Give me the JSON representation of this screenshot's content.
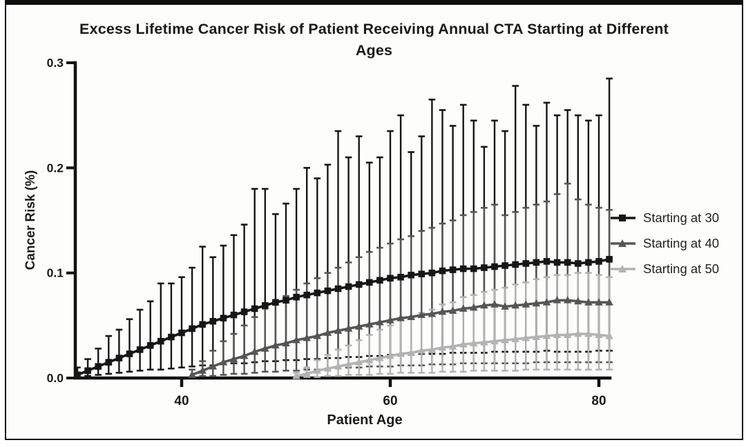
{
  "figure": {
    "title_lines": [
      "Excess Lifetime Cancer Risk of Patient Receiving Annual CTA Starting at Different",
      "Ages"
    ],
    "legend": [
      {
        "label": "Starting at 30",
        "color": "#161616",
        "marker": "square"
      },
      {
        "label": "Starting at 40",
        "color": "#555555",
        "marker": "triangle"
      },
      {
        "label": "Starting at 50",
        "color": "#b3b3b3",
        "marker": "triangle"
      }
    ]
  },
  "chart_data": {
    "type": "line",
    "title": "Excess Lifetime Cancer Risk of Patient Receiving Annual CTA Starting at Different Ages",
    "xlabel": "Patient Age",
    "ylabel": "Cancer Risk (%)",
    "xlim": [
      29,
      82
    ],
    "ylim": [
      0,
      0.3
    ],
    "grid": false,
    "legend_position": "right",
    "x_ticks": [
      40,
      60,
      80
    ],
    "x_tick_labels": [
      "40",
      "60",
      "80"
    ],
    "y_ticks": [
      0.0,
      0.1,
      0.2,
      0.3
    ],
    "y_tick_labels": [
      "0.0",
      "0.1",
      "0.2",
      "0.3"
    ],
    "error_bars": true,
    "series": [
      {
        "name": "Starting at 30",
        "marker": "square",
        "color": "#161616",
        "x": [
          30,
          31,
          32,
          33,
          34,
          35,
          36,
          37,
          38,
          39,
          40,
          41,
          42,
          43,
          44,
          45,
          46,
          47,
          48,
          49,
          50,
          51,
          52,
          53,
          54,
          55,
          56,
          57,
          58,
          59,
          60,
          61,
          62,
          63,
          64,
          65,
          66,
          67,
          68,
          69,
          70,
          71,
          72,
          73,
          74,
          75,
          76,
          77,
          78,
          79,
          80,
          81
        ],
        "y": [
          0.003,
          0.007,
          0.011,
          0.015,
          0.019,
          0.023,
          0.027,
          0.031,
          0.035,
          0.039,
          0.043,
          0.047,
          0.051,
          0.054,
          0.057,
          0.06,
          0.063,
          0.066,
          0.069,
          0.072,
          0.074,
          0.077,
          0.079,
          0.081,
          0.083,
          0.085,
          0.087,
          0.089,
          0.091,
          0.093,
          0.095,
          0.096,
          0.098,
          0.099,
          0.1,
          0.102,
          0.103,
          0.104,
          0.104,
          0.105,
          0.106,
          0.107,
          0.108,
          0.109,
          0.11,
          0.111,
          0.11,
          0.11,
          0.109,
          0.11,
          0.111,
          0.113
        ],
        "err_high": [
          0.01,
          0.018,
          0.028,
          0.04,
          0.046,
          0.056,
          0.065,
          0.073,
          0.09,
          0.09,
          0.096,
          0.105,
          0.125,
          0.115,
          0.126,
          0.136,
          0.146,
          0.18,
          0.18,
          0.156,
          0.166,
          0.18,
          0.2,
          0.19,
          0.203,
          0.235,
          0.21,
          0.23,
          0.205,
          0.21,
          0.235,
          0.25,
          0.215,
          0.23,
          0.265,
          0.255,
          0.24,
          0.26,
          0.245,
          0.22,
          0.245,
          0.235,
          0.278,
          0.26,
          0.24,
          0.262,
          0.25,
          0.255,
          0.25,
          0.245,
          0.25,
          0.285
        ],
        "err_low": [
          0.001,
          0.002,
          0.003,
          0.004,
          0.005,
          0.006,
          0.007,
          0.008,
          0.008,
          0.009,
          0.01,
          0.011,
          0.012,
          0.012,
          0.013,
          0.014,
          0.014,
          0.015,
          0.016,
          0.016,
          0.017,
          0.017,
          0.018,
          0.018,
          0.019,
          0.019,
          0.02,
          0.02,
          0.021,
          0.021,
          0.022,
          0.022,
          0.022,
          0.023,
          0.023,
          0.023,
          0.024,
          0.024,
          0.024,
          0.024,
          0.025,
          0.025,
          0.025,
          0.025,
          0.025,
          0.026,
          0.025,
          0.025,
          0.025,
          0.025,
          0.026,
          0.026
        ]
      },
      {
        "name": "Starting at 40",
        "marker": "triangle",
        "color": "#555555",
        "x": [
          41,
          42,
          43,
          44,
          45,
          46,
          47,
          48,
          49,
          50,
          51,
          52,
          53,
          54,
          55,
          56,
          57,
          58,
          59,
          60,
          61,
          62,
          63,
          64,
          65,
          66,
          67,
          68,
          69,
          70,
          71,
          72,
          73,
          74,
          75,
          76,
          77,
          78,
          79,
          80,
          81
        ],
        "y": [
          0.003,
          0.007,
          0.011,
          0.015,
          0.018,
          0.021,
          0.025,
          0.028,
          0.031,
          0.033,
          0.036,
          0.038,
          0.04,
          0.043,
          0.045,
          0.047,
          0.049,
          0.051,
          0.053,
          0.055,
          0.057,
          0.058,
          0.06,
          0.061,
          0.063,
          0.064,
          0.066,
          0.067,
          0.069,
          0.07,
          0.068,
          0.069,
          0.07,
          0.071,
          0.072,
          0.074,
          0.074,
          0.073,
          0.072,
          0.072,
          0.072
        ],
        "err_high": [
          0.008,
          0.016,
          0.026,
          0.035,
          0.042,
          0.05,
          0.058,
          0.066,
          0.072,
          0.078,
          0.084,
          0.09,
          0.095,
          0.1,
          0.105,
          0.11,
          0.115,
          0.12,
          0.124,
          0.128,
          0.132,
          0.135,
          0.14,
          0.143,
          0.147,
          0.15,
          0.155,
          0.158,
          0.162,
          0.165,
          0.155,
          0.158,
          0.162,
          0.165,
          0.168,
          0.175,
          0.185,
          0.17,
          0.165,
          0.162,
          0.16
        ],
        "err_low": [
          0.001,
          0.002,
          0.002,
          0.003,
          0.004,
          0.004,
          0.005,
          0.006,
          0.006,
          0.007,
          0.007,
          0.008,
          0.008,
          0.009,
          0.009,
          0.01,
          0.01,
          0.011,
          0.011,
          0.011,
          0.012,
          0.012,
          0.012,
          0.013,
          0.013,
          0.013,
          0.014,
          0.014,
          0.014,
          0.014,
          0.014,
          0.014,
          0.014,
          0.015,
          0.015,
          0.015,
          0.015,
          0.015,
          0.015,
          0.015,
          0.015
        ]
      },
      {
        "name": "Starting at 50",
        "marker": "triangle",
        "color": "#b3b3b3",
        "x": [
          51,
          52,
          53,
          54,
          55,
          56,
          57,
          58,
          59,
          60,
          61,
          62,
          63,
          64,
          65,
          66,
          67,
          68,
          69,
          70,
          71,
          72,
          73,
          74,
          75,
          76,
          77,
          78,
          79,
          80,
          81
        ],
        "y": [
          0.002,
          0.004,
          0.007,
          0.009,
          0.011,
          0.013,
          0.015,
          0.017,
          0.019,
          0.021,
          0.023,
          0.024,
          0.026,
          0.027,
          0.029,
          0.03,
          0.032,
          0.033,
          0.034,
          0.035,
          0.036,
          0.037,
          0.038,
          0.039,
          0.04,
          0.041,
          0.041,
          0.042,
          0.042,
          0.041,
          0.04
        ],
        "err_high": [
          0.005,
          0.01,
          0.017,
          0.022,
          0.027,
          0.031,
          0.036,
          0.041,
          0.046,
          0.05,
          0.055,
          0.058,
          0.062,
          0.065,
          0.07,
          0.072,
          0.077,
          0.079,
          0.082,
          0.084,
          0.086,
          0.089,
          0.091,
          0.094,
          0.096,
          0.098,
          0.098,
          0.1,
          0.1,
          0.098,
          0.096
        ],
        "err_low": [
          0.0,
          0.001,
          0.001,
          0.002,
          0.002,
          0.003,
          0.003,
          0.003,
          0.004,
          0.004,
          0.005,
          0.005,
          0.005,
          0.005,
          0.006,
          0.006,
          0.006,
          0.007,
          0.007,
          0.007,
          0.007,
          0.007,
          0.008,
          0.008,
          0.008,
          0.008,
          0.008,
          0.008,
          0.008,
          0.008,
          0.008
        ]
      }
    ]
  }
}
